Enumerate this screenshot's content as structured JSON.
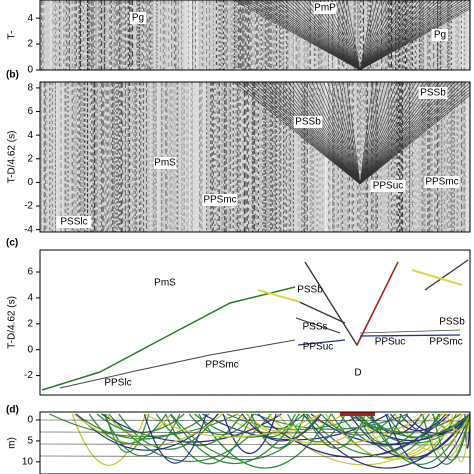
{
  "panels": [
    {
      "ylabel": "T-",
      "ylim": [
        0,
        5.4
      ],
      "yticks": [
        0,
        2,
        4
      ],
      "phases": [
        "Pg",
        "PmP",
        "Pg"
      ]
    },
    {
      "label": "(b)",
      "ylabel": "T-D/4.62 (s)",
      "ylim": [
        -4.2,
        8.5
      ],
      "yticks": [
        8,
        6,
        4,
        2,
        0,
        -2,
        -4
      ],
      "phases": [
        "PSSb",
        "PSSb",
        "PmS",
        "PPSmc",
        "PPSuc",
        "PPSmc",
        "PSSlc"
      ]
    },
    {
      "label": "(c)",
      "ylabel": "T-D/4.62 (s)",
      "ylim": [
        -3.5,
        7.7
      ],
      "yticks": [
        6,
        4,
        2,
        0,
        -2
      ],
      "phases": [
        "PmS",
        "PSSb",
        "PSSs",
        "PPSuc",
        "D",
        "PPSuc",
        "PPSmc",
        "PSSb",
        "PPSmc",
        "PPSlc"
      ]
    },
    {
      "label": "(d)",
      "ylabel": "m)",
      "ylim": [
        -1.9,
        12.9
      ],
      "yticks": [
        0,
        5,
        10
      ]
    }
  ]
}
